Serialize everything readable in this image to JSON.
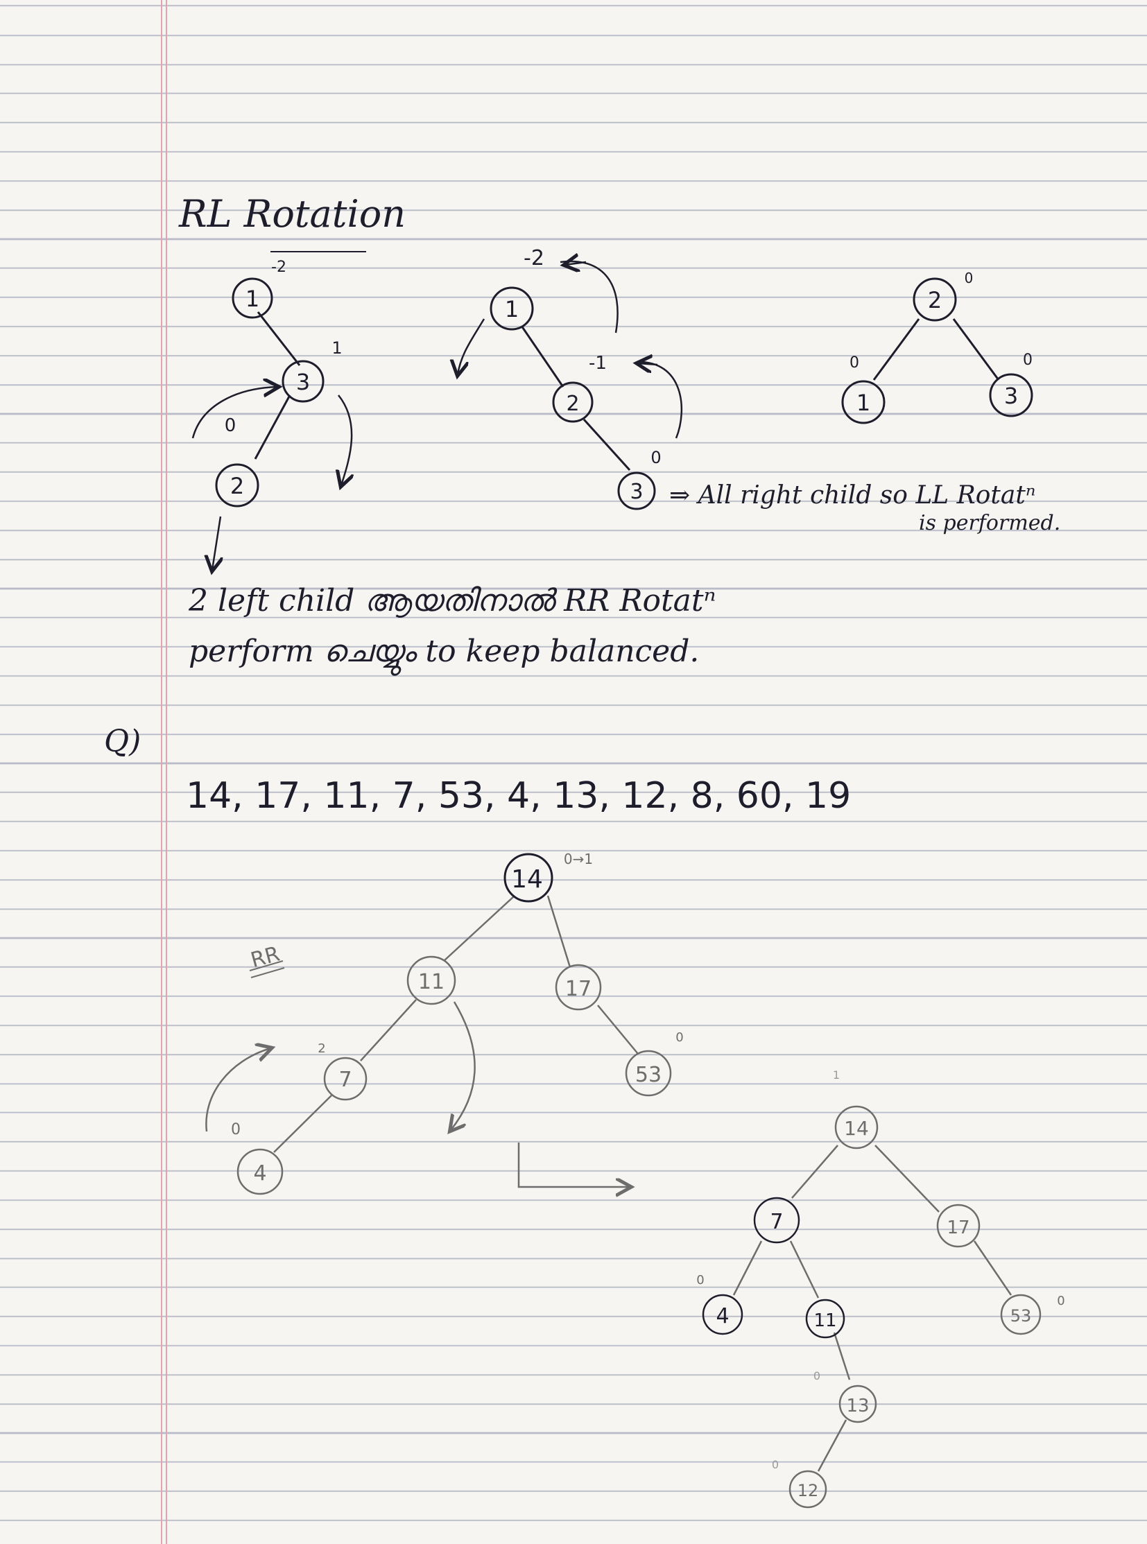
{
  "rl_section": {
    "title": "RL Rotation",
    "tree1": {
      "nodes": [
        {
          "label": "1",
          "balance": "-2"
        },
        {
          "label": "3",
          "balance": "1"
        },
        {
          "label": "2",
          "balance": "0"
        }
      ]
    },
    "tree2": {
      "nodes": [
        {
          "label": "1",
          "balance": "-2"
        },
        {
          "label": "2",
          "balance": "-1"
        },
        {
          "label": "3",
          "balance": "0"
        }
      ]
    },
    "tree3": {
      "nodes": [
        {
          "label": "2",
          "balance": "0"
        },
        {
          "label": "1",
          "balance": "0"
        },
        {
          "label": "3",
          "balance": "0"
        }
      ]
    },
    "note_line1": "⇒ All right child so LL Rotatⁿ",
    "note_line2": "is performed.",
    "explain_line1": "2 left child ആയതിനാൽ RR Rotatⁿ",
    "explain_line2": "perform ചെയ്യും to keep balanced."
  },
  "question": {
    "label": "Q)",
    "sequence": "14, 17, 11, 7, 53, 4, 13, 12, 8, 60, 19",
    "rotation_label": "RR",
    "tree_before": {
      "nodes": [
        {
          "label": "14",
          "balance": "0→1"
        },
        {
          "label": "11",
          "balance": ""
        },
        {
          "label": "17",
          "balance": ""
        },
        {
          "label": "7",
          "balance": "2"
        },
        {
          "label": "53",
          "balance": "0"
        },
        {
          "label": "4",
          "balance": "0"
        }
      ]
    },
    "tree_after": {
      "nodes": [
        {
          "label": "14",
          "balance": "1"
        },
        {
          "label": "7",
          "balance": ""
        },
        {
          "label": "17",
          "balance": ""
        },
        {
          "label": "4",
          "balance": "0"
        },
        {
          "label": "11",
          "balance": ""
        },
        {
          "label": "53",
          "balance": "0"
        },
        {
          "label": "13",
          "balance": "0"
        },
        {
          "label": "12",
          "balance": "0"
        }
      ]
    }
  },
  "colors": {
    "ink": "#1d1d2b",
    "pencil": "#6d6d6d",
    "ruling": "#b9bcc8",
    "margin": "#e3a3b0",
    "paper": "#f6f5f1"
  }
}
